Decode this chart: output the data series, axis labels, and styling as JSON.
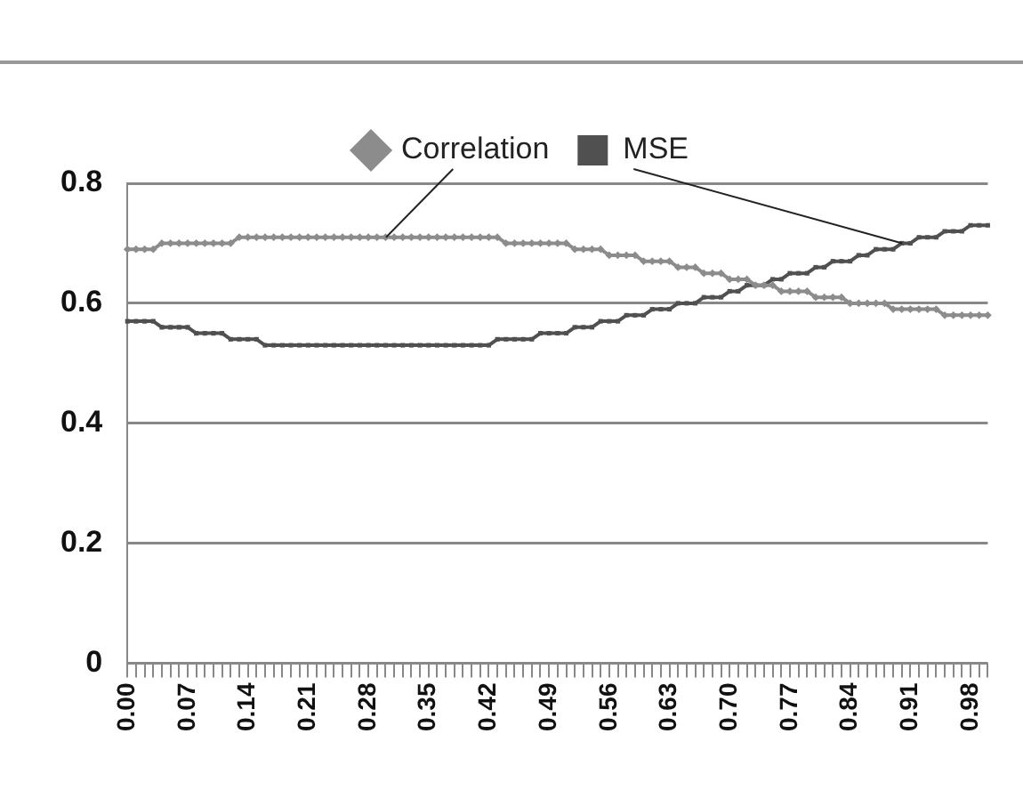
{
  "chart_data": {
    "type": "line",
    "categories": [
      "0.00",
      null,
      null,
      null,
      null,
      null,
      null,
      "0.07",
      null,
      null,
      null,
      null,
      null,
      null,
      "0.14",
      null,
      null,
      null,
      null,
      null,
      null,
      "0.21",
      null,
      null,
      null,
      null,
      null,
      null,
      "0.28",
      null,
      null,
      null,
      null,
      null,
      null,
      "0.35",
      null,
      null,
      null,
      null,
      null,
      null,
      "0.42",
      null,
      null,
      null,
      null,
      null,
      null,
      "0.49",
      null,
      null,
      null,
      null,
      null,
      null,
      "0.56",
      null,
      null,
      null,
      null,
      null,
      null,
      "0.63",
      null,
      null,
      null,
      null,
      null,
      null,
      "0.70",
      null,
      null,
      null,
      null,
      null,
      null,
      "0.77",
      null,
      null,
      null,
      null,
      null,
      null,
      "0.84",
      null,
      null,
      null,
      null,
      null,
      null,
      "0.91",
      null,
      null,
      null,
      null,
      null,
      null,
      "0.98",
      null,
      null
    ],
    "series": [
      {
        "name": "Correlation",
        "color": "#8c8c8c",
        "marker": "diamond",
        "values": [
          0.69,
          0.69,
          0.69,
          0.69,
          0.7,
          0.7,
          0.7,
          0.7,
          0.7,
          0.7,
          0.7,
          0.7,
          0.7,
          0.71,
          0.71,
          0.71,
          0.71,
          0.71,
          0.71,
          0.71,
          0.71,
          0.71,
          0.71,
          0.71,
          0.71,
          0.71,
          0.71,
          0.71,
          0.71,
          0.71,
          0.71,
          0.71,
          0.71,
          0.71,
          0.71,
          0.71,
          0.71,
          0.71,
          0.71,
          0.71,
          0.71,
          0.71,
          0.71,
          0.71,
          0.7,
          0.7,
          0.7,
          0.7,
          0.7,
          0.7,
          0.7,
          0.7,
          0.69,
          0.69,
          0.69,
          0.69,
          0.68,
          0.68,
          0.68,
          0.68,
          0.67,
          0.67,
          0.67,
          0.67,
          0.66,
          0.66,
          0.66,
          0.65,
          0.65,
          0.65,
          0.64,
          0.64,
          0.64,
          0.63,
          0.63,
          0.63,
          0.62,
          0.62,
          0.62,
          0.62,
          0.61,
          0.61,
          0.61,
          0.61,
          0.6,
          0.6,
          0.6,
          0.6,
          0.6,
          0.59,
          0.59,
          0.59,
          0.59,
          0.59,
          0.59,
          0.58,
          0.58,
          0.58,
          0.58,
          0.58,
          0.58
        ]
      },
      {
        "name": "MSE",
        "color": "#505050",
        "marker": "square",
        "values": [
          0.57,
          0.57,
          0.57,
          0.57,
          0.56,
          0.56,
          0.56,
          0.56,
          0.55,
          0.55,
          0.55,
          0.55,
          0.54,
          0.54,
          0.54,
          0.54,
          0.53,
          0.53,
          0.53,
          0.53,
          0.53,
          0.53,
          0.53,
          0.53,
          0.53,
          0.53,
          0.53,
          0.53,
          0.53,
          0.53,
          0.53,
          0.53,
          0.53,
          0.53,
          0.53,
          0.53,
          0.53,
          0.53,
          0.53,
          0.53,
          0.53,
          0.53,
          0.53,
          0.54,
          0.54,
          0.54,
          0.54,
          0.54,
          0.55,
          0.55,
          0.55,
          0.55,
          0.56,
          0.56,
          0.56,
          0.57,
          0.57,
          0.57,
          0.58,
          0.58,
          0.58,
          0.59,
          0.59,
          0.59,
          0.6,
          0.6,
          0.6,
          0.61,
          0.61,
          0.61,
          0.62,
          0.62,
          0.63,
          0.63,
          0.63,
          0.64,
          0.64,
          0.65,
          0.65,
          0.65,
          0.66,
          0.66,
          0.67,
          0.67,
          0.67,
          0.68,
          0.68,
          0.69,
          0.69,
          0.69,
          0.7,
          0.7,
          0.71,
          0.71,
          0.71,
          0.72,
          0.72,
          0.72,
          0.73,
          0.73,
          0.73
        ]
      }
    ],
    "ylim": [
      0,
      0.8
    ],
    "yticks": [
      0,
      0.2,
      0.4,
      0.6,
      0.8
    ],
    "grid": "y",
    "legend": "top",
    "line_style": "solid"
  }
}
